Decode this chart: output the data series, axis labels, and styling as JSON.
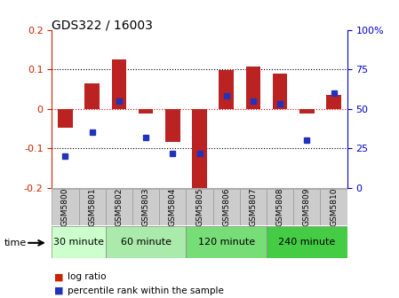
{
  "title": "GDS322 / 16003",
  "samples": [
    "GSM5800",
    "GSM5801",
    "GSM5802",
    "GSM5803",
    "GSM5804",
    "GSM5805",
    "GSM5806",
    "GSM5807",
    "GSM5808",
    "GSM5809",
    "GSM5810"
  ],
  "log_ratio": [
    -0.048,
    0.065,
    0.125,
    -0.012,
    -0.085,
    -0.22,
    0.098,
    0.108,
    0.088,
    -0.012,
    0.035
  ],
  "percentile": [
    20,
    35,
    55,
    32,
    22,
    22,
    58,
    55,
    53,
    30,
    60
  ],
  "ylim_left": [
    -0.2,
    0.2
  ],
  "ylim_right": [
    0,
    100
  ],
  "yticks_left": [
    -0.2,
    -0.1,
    0.0,
    0.1,
    0.2
  ],
  "yticks_left_labels": [
    "-0.2",
    "-0.1",
    "0",
    "0.1",
    "0.2"
  ],
  "yticks_right": [
    0,
    25,
    50,
    75,
    100
  ],
  "yticks_right_labels": [
    "0",
    "25",
    "50",
    "75",
    "100%"
  ],
  "bar_color": "#bb2222",
  "dot_color": "#2233bb",
  "bar_width": 0.55,
  "groups": [
    {
      "label": "30 minute",
      "start": 0,
      "end": 2,
      "color": "#ccffcc"
    },
    {
      "label": "60 minute",
      "start": 2,
      "end": 5,
      "color": "#aaeaaa"
    },
    {
      "label": "120 minute",
      "start": 5,
      "end": 8,
      "color": "#77dd77"
    },
    {
      "label": "240 minute",
      "start": 8,
      "end": 11,
      "color": "#44cc44"
    }
  ],
  "left_axis_color": "#cc2200",
  "right_axis_color": "#0000cc",
  "legend_log_ratio_color": "#cc2200",
  "legend_percentile_color": "#2233bb",
  "background_color": "#ffffff",
  "time_label": "time"
}
